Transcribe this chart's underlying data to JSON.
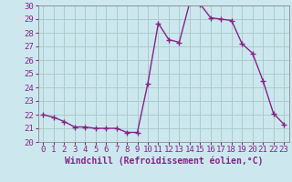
{
  "x": [
    0,
    1,
    2,
    3,
    4,
    5,
    6,
    7,
    8,
    9,
    10,
    11,
    12,
    13,
    14,
    15,
    16,
    17,
    18,
    19,
    20,
    21,
    22,
    23
  ],
  "y": [
    22.0,
    21.8,
    21.5,
    21.1,
    21.1,
    21.0,
    21.0,
    21.0,
    20.7,
    20.7,
    24.3,
    28.7,
    27.5,
    27.3,
    30.2,
    30.1,
    29.1,
    29.0,
    28.9,
    27.2,
    26.5,
    24.5,
    22.1,
    21.3
  ],
  "line_color": "#882288",
  "marker_color": "#882288",
  "bg_color": "#cce8ee",
  "grid_color": "#aacccc",
  "xlabel": "Windchill (Refroidissement éolien,°C)",
  "xlabel_color": "#882288",
  "tick_color": "#882288",
  "ylim": [
    20,
    30
  ],
  "xlim_min": -0.5,
  "xlim_max": 23.5,
  "yticks": [
    20,
    21,
    22,
    23,
    24,
    25,
    26,
    27,
    28,
    29,
    30
  ],
  "xticks": [
    0,
    1,
    2,
    3,
    4,
    5,
    6,
    7,
    8,
    9,
    10,
    11,
    12,
    13,
    14,
    15,
    16,
    17,
    18,
    19,
    20,
    21,
    22,
    23
  ],
  "marker_size": 4,
  "line_width": 1.0,
  "tick_fontsize": 6.5,
  "xlabel_fontsize": 7
}
